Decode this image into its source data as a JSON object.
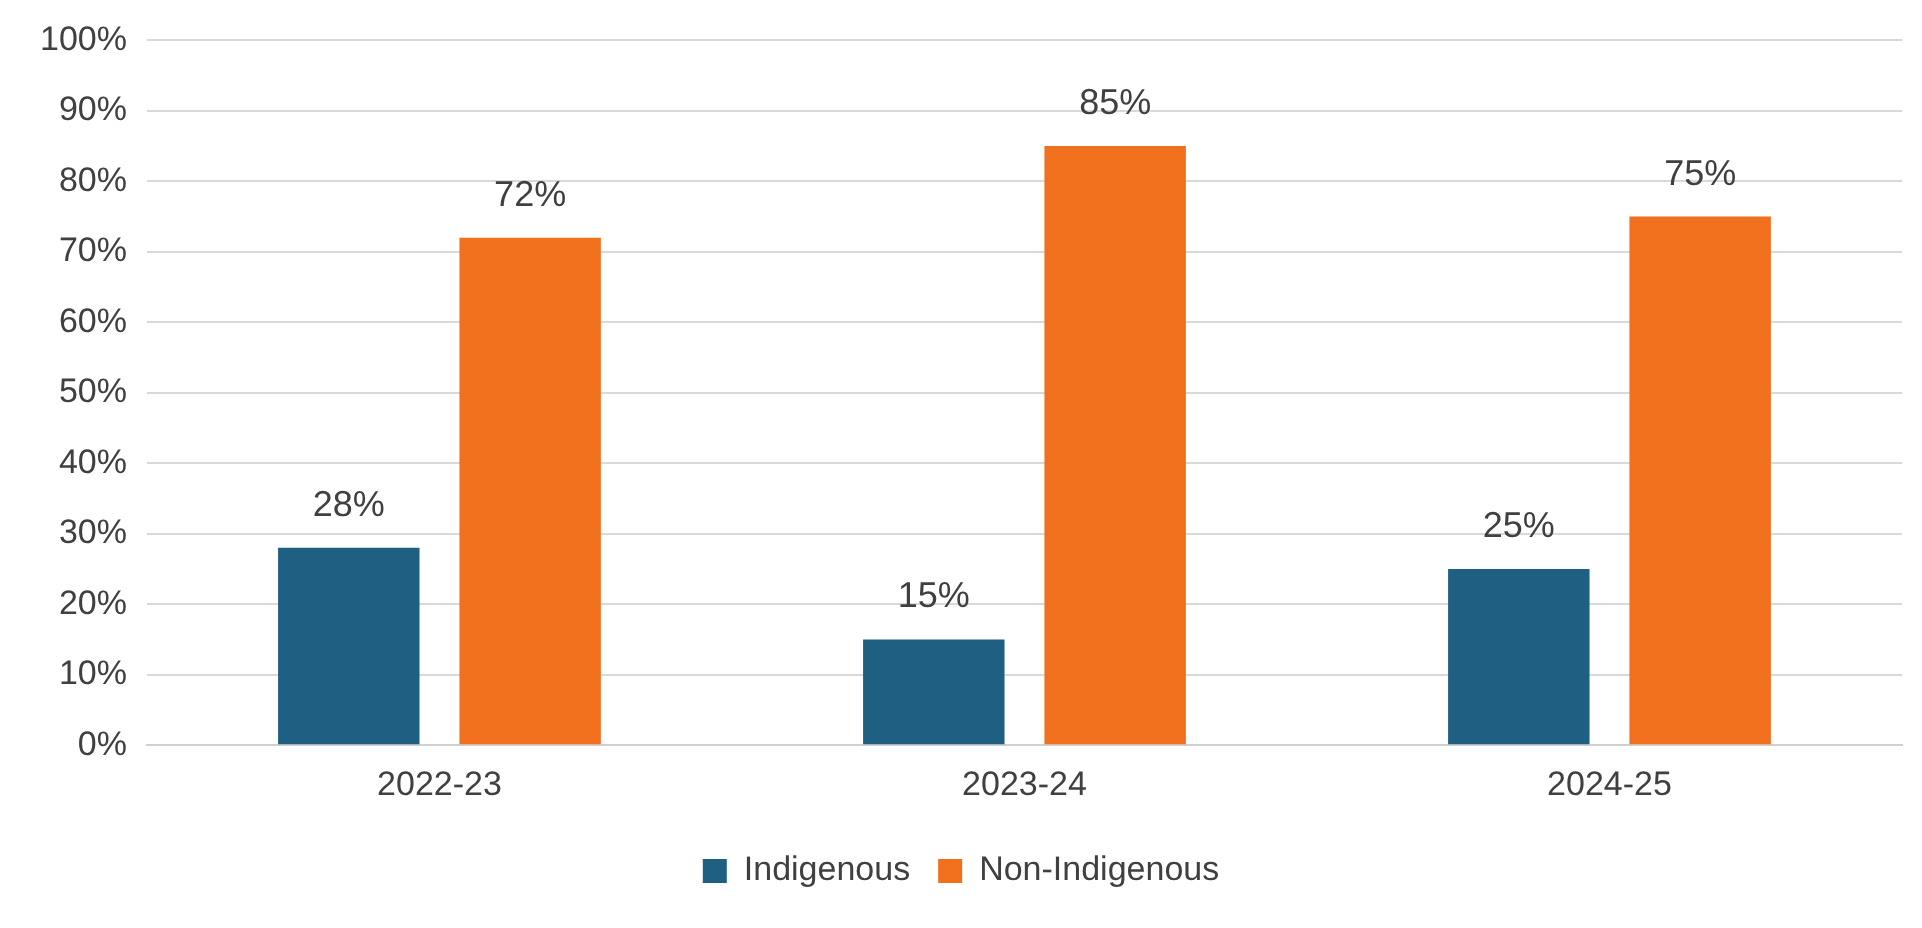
{
  "chart_data": {
    "type": "bar",
    "categories": [
      "2022-23",
      "2023-24",
      "2024-25"
    ],
    "series": [
      {
        "name": "Indigenous",
        "color": "#1f5f82",
        "values": [
          28,
          15,
          25
        ],
        "value_labels": [
          "28%",
          "15%",
          "25%"
        ]
      },
      {
        "name": "Non-Indigenous",
        "color": "#f0701e",
        "values": [
          72,
          85,
          75
        ],
        "value_labels": [
          "72%",
          "85%",
          "75%"
        ]
      }
    ],
    "ylim": [
      0,
      100
    ],
    "yticks": [
      {
        "value": 0,
        "label": "0%"
      },
      {
        "value": 10,
        "label": "10%"
      },
      {
        "value": 20,
        "label": "20%"
      },
      {
        "value": 30,
        "label": "30%"
      },
      {
        "value": 40,
        "label": "40%"
      },
      {
        "value": 50,
        "label": "50%"
      },
      {
        "value": 60,
        "label": "60%"
      },
      {
        "value": 70,
        "label": "70%"
      },
      {
        "value": 80,
        "label": "80%"
      },
      {
        "value": 90,
        "label": "90%"
      },
      {
        "value": 100,
        "label": "100%"
      }
    ],
    "grid": "y",
    "legend": "bottom"
  }
}
